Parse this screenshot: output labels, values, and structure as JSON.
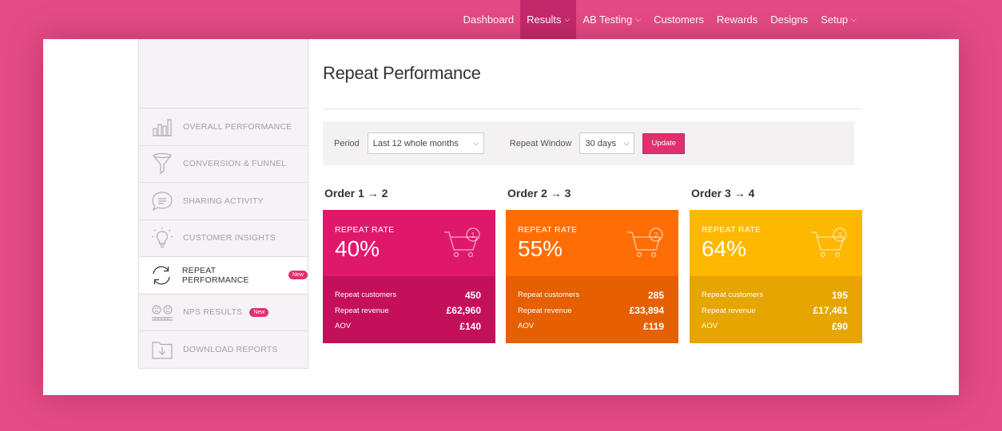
{
  "nav": {
    "items": [
      {
        "label": "Dashboard",
        "dropdown": false,
        "active": false
      },
      {
        "label": "Results",
        "dropdown": true,
        "active": true
      },
      {
        "label": "AB Testing",
        "dropdown": true,
        "active": false
      },
      {
        "label": "Customers",
        "dropdown": false,
        "active": false
      },
      {
        "label": "Rewards",
        "dropdown": false,
        "active": false
      },
      {
        "label": "Designs",
        "dropdown": false,
        "active": false
      },
      {
        "label": "Setup",
        "dropdown": true,
        "active": false
      }
    ]
  },
  "sidebar": {
    "items": [
      {
        "label": "OVERALL PERFORMANCE",
        "icon": "bar-chart-icon"
      },
      {
        "label": "CONVERSION & FUNNEL",
        "icon": "funnel-icon"
      },
      {
        "label": "SHARING ACTIVITY",
        "icon": "chat-bubble-icon"
      },
      {
        "label": "CUSTOMER INSIGHTS",
        "icon": "lightbulb-icon"
      },
      {
        "label": "REPEAT PERFORMANCE",
        "icon": "refresh-icon",
        "badge": "New",
        "active": true
      },
      {
        "label": "NPS RESULTS",
        "icon": "faces-icon",
        "badge": "New"
      },
      {
        "label": "DOWNLOAD REPORTS",
        "icon": "folder-download-icon"
      }
    ]
  },
  "page": {
    "title": "Repeat Performance"
  },
  "filters": {
    "period_label": "Period",
    "period_value": "Last 12 whole months",
    "window_label": "Repeat Window",
    "window_value": "30 days",
    "update_label": "Update"
  },
  "colors": {
    "brand": "#e44c86",
    "card1_top": "#e0186b",
    "card1_bottom": "#c4105b",
    "card2_top": "#ff6d04",
    "card2_bottom": "#e65f00",
    "card3_top": "#ffb800",
    "card3_bottom": "#e6a500"
  },
  "orders": [
    {
      "heading": "Order 1 → 2",
      "rate_label": "REPEAT RATE",
      "rate_value": "40%",
      "cart_number": "1",
      "rows": [
        {
          "label": "Repeat customers",
          "value": "450"
        },
        {
          "label": "Repeat revenue",
          "value": "£62,960"
        },
        {
          "label": "AOV",
          "value": "£140"
        }
      ]
    },
    {
      "heading": "Order 2 → 3",
      "rate_label": "REPEAT RATE",
      "rate_value": "55%",
      "cart_number": "2",
      "rows": [
        {
          "label": "Repeat customers",
          "value": "285"
        },
        {
          "label": "Repeat revenue",
          "value": "£33,894"
        },
        {
          "label": "AOV",
          "value": "£119"
        }
      ]
    },
    {
      "heading": "Order 3 → 4",
      "rate_label": "REPEAT RATE",
      "rate_value": "64%",
      "cart_number": "3",
      "rows": [
        {
          "label": "Repeat customers",
          "value": "195"
        },
        {
          "label": "Repeat revenue",
          "value": "£17,461"
        },
        {
          "label": "AOV",
          "value": "£90"
        }
      ]
    }
  ]
}
